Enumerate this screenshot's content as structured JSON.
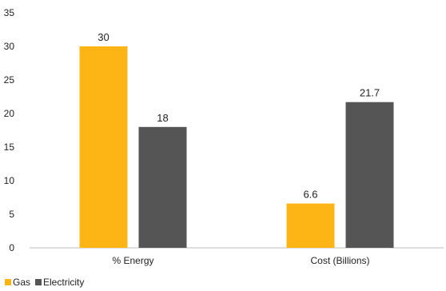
{
  "chart_data": {
    "type": "bar",
    "categories": [
      "% Energy",
      "Cost (Billions)"
    ],
    "series": [
      {
        "name": "Gas",
        "values": [
          30,
          6.6
        ],
        "value_labels": [
          "30",
          "6.6"
        ],
        "color": "#FDB515"
      },
      {
        "name": "Electricity",
        "values": [
          18,
          21.7
        ],
        "value_labels": [
          "18",
          "21.7"
        ],
        "color": "#555555"
      }
    ],
    "ylim": [
      0,
      35
    ],
    "yticks": [
      "0",
      "5",
      "10",
      "15",
      "20",
      "25",
      "30",
      "35"
    ],
    "grid": false,
    "legend_position": "bottom-left"
  }
}
